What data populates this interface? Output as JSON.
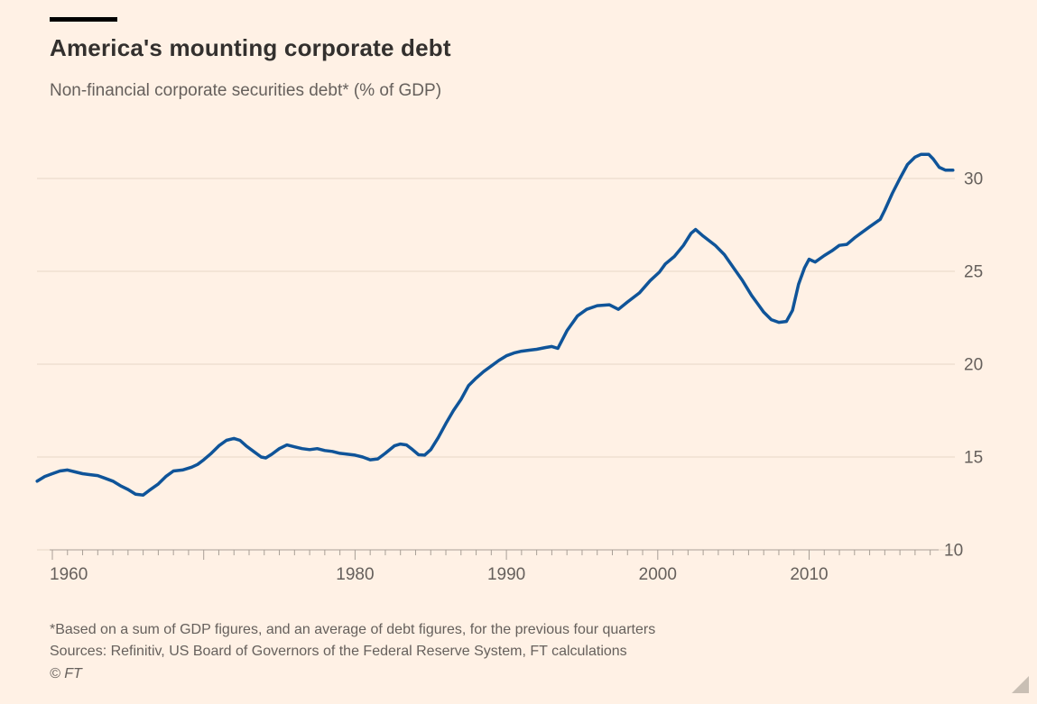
{
  "header": {
    "title": "America's mounting corporate debt",
    "subtitle": "Non-financial corporate securities debt* (% of GDP)"
  },
  "footer": {
    "footnote": "*Based on a sum of GDP figures, and an average of debt figures, for the previous four quarters",
    "sources": "Sources: Refinitiv, US Board of Governors of the Federal Reserve System, FT calculations",
    "copyright": "© FT"
  },
  "icons": {
    "resize_handle": "corner-resize-triangle"
  },
  "colors": {
    "background": "#FFF1E5",
    "line": "#0F5499",
    "title_text": "#33302E",
    "secondary_text": "#66605C",
    "gridline": "#E7D8C8",
    "axis": "#A89F96",
    "accent_bar": "#000000",
    "resize_handle": "#C9BFB4"
  },
  "chart_data": {
    "type": "line",
    "title": "America's mounting corporate debt",
    "subtitle": "Non-financial corporate securities debt* (% of GDP)",
    "ylabel": "% of GDP",
    "x_range": [
      1959,
      2019.5
    ],
    "ylim": [
      10,
      31.8
    ],
    "grid": true,
    "legend": "none",
    "y_axis": {
      "side": "right",
      "ticks": [
        10,
        15,
        20,
        25,
        30
      ]
    },
    "x_axis": {
      "first_tick_year": 1960,
      "last_tick_year": 2018,
      "minor_tick_every": 1,
      "major_tick_every": 10,
      "label_years": [
        1960,
        1980,
        1990,
        2000,
        2010
      ]
    },
    "series": [
      {
        "name": "Non-financial corporate securities debt (% of GDP)",
        "color": "#0F5499",
        "points": [
          [
            1959.0,
            13.7
          ],
          [
            1959.5,
            13.95
          ],
          [
            1960.0,
            14.1
          ],
          [
            1960.5,
            14.25
          ],
          [
            1961.0,
            14.3
          ],
          [
            1961.5,
            14.2
          ],
          [
            1962.0,
            14.1
          ],
          [
            1962.5,
            14.05
          ],
          [
            1963.0,
            14.0
          ],
          [
            1963.5,
            13.85
          ],
          [
            1964.0,
            13.7
          ],
          [
            1964.5,
            13.45
          ],
          [
            1965.0,
            13.25
          ],
          [
            1965.5,
            13.0
          ],
          [
            1966.0,
            12.95
          ],
          [
            1966.4,
            13.2
          ],
          [
            1967.0,
            13.55
          ],
          [
            1967.5,
            13.95
          ],
          [
            1968.0,
            14.25
          ],
          [
            1968.6,
            14.3
          ],
          [
            1969.2,
            14.45
          ],
          [
            1969.6,
            14.6
          ],
          [
            1970.0,
            14.85
          ],
          [
            1970.5,
            15.2
          ],
          [
            1971.0,
            15.6
          ],
          [
            1971.5,
            15.9
          ],
          [
            1972.0,
            16.0
          ],
          [
            1972.4,
            15.9
          ],
          [
            1972.8,
            15.6
          ],
          [
            1973.3,
            15.3
          ],
          [
            1973.8,
            15.0
          ],
          [
            1974.1,
            14.95
          ],
          [
            1974.5,
            15.15
          ],
          [
            1975.0,
            15.45
          ],
          [
            1975.5,
            15.65
          ],
          [
            1976.0,
            15.55
          ],
          [
            1976.5,
            15.45
          ],
          [
            1977.0,
            15.4
          ],
          [
            1977.5,
            15.45
          ],
          [
            1978.0,
            15.35
          ],
          [
            1978.5,
            15.3
          ],
          [
            1979.0,
            15.2
          ],
          [
            1979.5,
            15.15
          ],
          [
            1980.0,
            15.1
          ],
          [
            1980.5,
            15.0
          ],
          [
            1981.0,
            14.85
          ],
          [
            1981.5,
            14.9
          ],
          [
            1982.0,
            15.2
          ],
          [
            1982.6,
            15.6
          ],
          [
            1983.0,
            15.7
          ],
          [
            1983.4,
            15.65
          ],
          [
            1983.8,
            15.4
          ],
          [
            1984.2,
            15.12
          ],
          [
            1984.6,
            15.1
          ],
          [
            1985.0,
            15.4
          ],
          [
            1985.5,
            16.05
          ],
          [
            1986.0,
            16.8
          ],
          [
            1986.5,
            17.5
          ],
          [
            1987.0,
            18.1
          ],
          [
            1987.5,
            18.85
          ],
          [
            1988.0,
            19.25
          ],
          [
            1988.5,
            19.6
          ],
          [
            1989.0,
            19.9
          ],
          [
            1989.5,
            20.2
          ],
          [
            1990.0,
            20.45
          ],
          [
            1990.5,
            20.6
          ],
          [
            1991.0,
            20.7
          ],
          [
            1991.5,
            20.75
          ],
          [
            1992.0,
            20.8
          ],
          [
            1992.6,
            20.9
          ],
          [
            1993.0,
            20.95
          ],
          [
            1993.4,
            20.85
          ],
          [
            1994.0,
            21.8
          ],
          [
            1994.7,
            22.6
          ],
          [
            1995.3,
            22.95
          ],
          [
            1996.0,
            23.15
          ],
          [
            1996.8,
            23.2
          ],
          [
            1997.4,
            22.95
          ],
          [
            1998.0,
            23.35
          ],
          [
            1998.8,
            23.85
          ],
          [
            1999.5,
            24.5
          ],
          [
            2000.1,
            24.95
          ],
          [
            2000.5,
            25.4
          ],
          [
            2001.1,
            25.8
          ],
          [
            2001.7,
            26.4
          ],
          [
            2002.2,
            27.05
          ],
          [
            2002.5,
            27.25
          ],
          [
            2003.0,
            26.9
          ],
          [
            2003.8,
            26.4
          ],
          [
            2004.4,
            25.9
          ],
          [
            2005.0,
            25.2
          ],
          [
            2005.6,
            24.5
          ],
          [
            2006.2,
            23.7
          ],
          [
            2006.6,
            23.25
          ],
          [
            2007.0,
            22.8
          ],
          [
            2007.5,
            22.4
          ],
          [
            2008.0,
            22.25
          ],
          [
            2008.5,
            22.3
          ],
          [
            2008.9,
            22.9
          ],
          [
            2009.3,
            24.3
          ],
          [
            2009.7,
            25.2
          ],
          [
            2010.0,
            25.65
          ],
          [
            2010.4,
            25.5
          ],
          [
            2011.0,
            25.85
          ],
          [
            2011.5,
            26.1
          ],
          [
            2012.0,
            26.4
          ],
          [
            2012.5,
            26.45
          ],
          [
            2013.0,
            26.8
          ],
          [
            2013.5,
            27.1
          ],
          [
            2014.0,
            27.4
          ],
          [
            2014.7,
            27.8
          ],
          [
            2015.0,
            28.3
          ],
          [
            2015.5,
            29.2
          ],
          [
            2016.0,
            30.0
          ],
          [
            2016.5,
            30.75
          ],
          [
            2017.0,
            31.15
          ],
          [
            2017.4,
            31.3
          ],
          [
            2017.9,
            31.3
          ],
          [
            2018.2,
            31.05
          ],
          [
            2018.6,
            30.6
          ],
          [
            2019.0,
            30.45
          ],
          [
            2019.5,
            30.45
          ]
        ]
      }
    ]
  }
}
